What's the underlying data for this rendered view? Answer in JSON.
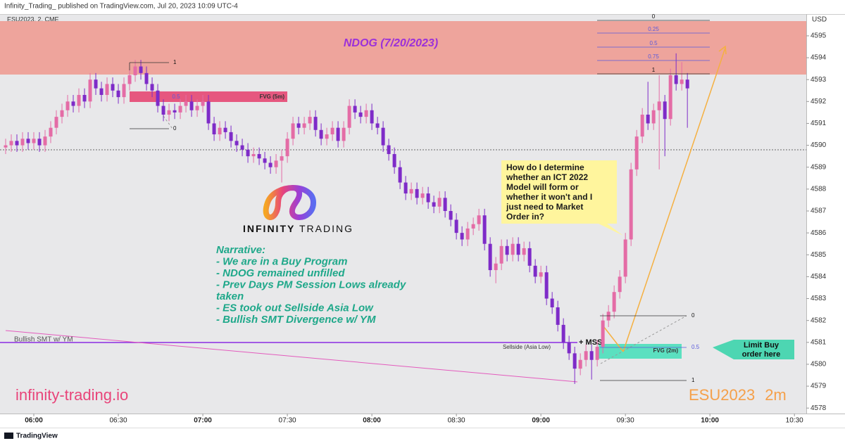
{
  "header": {
    "published": "Infinity_Trading_ published on TradingView.com, Jul 20, 2023 10:09 UTC-4",
    "footer": "TradingView"
  },
  "chart_data": {
    "type": "candlestick",
    "symbol": "ESU2023, 2, CME",
    "currency": "USD",
    "up_color": "#e46ca6",
    "down_color": "#7e2bc8",
    "xlim": [
      -1,
      142.1
    ],
    "xticks": [
      {
        "value": 5,
        "label": "06:00"
      },
      {
        "value": 20,
        "label": "06:30"
      },
      {
        "value": 35,
        "label": "07:00"
      },
      {
        "value": 50,
        "label": "07:30"
      },
      {
        "value": 65,
        "label": "08:00"
      },
      {
        "value": 80,
        "label": "08:30"
      },
      {
        "value": 95,
        "label": "09:00"
      },
      {
        "value": 110,
        "label": "09:30"
      },
      {
        "value": 125,
        "label": "10:00"
      },
      {
        "value": 140,
        "label": "10:30"
      }
    ],
    "ylim": [
      4577.75,
      4596.25
    ],
    "yticks": [
      4578,
      4579,
      4580,
      4581,
      4582,
      4583,
      4584,
      4585,
      4586,
      4587,
      4588,
      4589,
      4590,
      4591,
      4592,
      4593,
      4594,
      4595
    ],
    "open": [
      4589.9,
      4590.0,
      4590.2,
      4590.0,
      4590.3,
      4590.1,
      4590.3,
      4590.0,
      4590.4,
      4590.8,
      4591.3,
      4591.6,
      4592.0,
      4591.8,
      4592.3,
      4592.0,
      4593.0,
      4592.6,
      4592.3,
      4592.8,
      4592.5,
      4592.2,
      4592.8,
      4593.2,
      4593.6,
      4593.3,
      4592.8,
      4592.5,
      4591.8,
      4591.4,
      4591.6,
      4591.5,
      4591.8,
      4592.0,
      4591.6,
      4591.8,
      4592.0,
      4591.0,
      4590.5,
      4590.8,
      4590.6,
      4590.2,
      4590.0,
      4589.8,
      4589.5,
      4589.6,
      4589.4,
      4589.2,
      4589.0,
      4589.3,
      4589.5,
      4590.3,
      4591.0,
      4590.8,
      4591.0,
      4591.3,
      4590.7,
      4590.3,
      4590.5,
      4590.8,
      4590.2,
      4590.8,
      4591.8,
      4591.5,
      4591.3,
      4591.6,
      4591.0,
      4590.8,
      4590.0,
      4589.6,
      4589.0,
      4588.3,
      4587.8,
      4588.0,
      4587.6,
      4587.8,
      4587.4,
      4587.2,
      4587.6,
      4587.0,
      4586.6,
      4586.0,
      4585.7,
      4586.2,
      4586.4,
      4586.8,
      4585.5,
      4584.3,
      4584.6,
      4585.4,
      4585.0,
      4585.5,
      4585.0,
      4585.3,
      4584.5,
      4584.0,
      4584.2,
      4583.0,
      4582.6,
      4581.8,
      4581.0,
      4580.5,
      4579.8,
      4580.2,
      4580.6,
      4580.2,
      4580.8,
      4582.0,
      4582.4,
      4583.3,
      4584.0,
      4585.7,
      4588.9,
      4590.4,
      4591.4,
      4591.0,
      4591.6,
      4592.0,
      4591.2,
      4593.2,
      4592.8,
      4593.0
    ],
    "high": [
      4590.3,
      4590.5,
      4590.5,
      4590.6,
      4590.6,
      4590.6,
      4590.6,
      4590.7,
      4591.1,
      4591.6,
      4591.9,
      4592.3,
      4592.3,
      4592.6,
      4592.6,
      4593.3,
      4593.3,
      4592.9,
      4593.1,
      4593.1,
      4592.8,
      4593.1,
      4593.5,
      4593.9,
      4593.9,
      4593.6,
      4593.1,
      4592.8,
      4592.1,
      4591.9,
      4591.9,
      4592.1,
      4592.3,
      4592.3,
      4592.1,
      4592.3,
      4592.3,
      4591.3,
      4591.1,
      4591.1,
      4590.9,
      4590.5,
      4590.3,
      4590.1,
      4589.9,
      4589.9,
      4589.7,
      4589.5,
      4589.6,
      4589.8,
      4590.6,
      4591.3,
      4591.3,
      4591.3,
      4591.6,
      4591.6,
      4591.0,
      4590.8,
      4591.1,
      4591.1,
      4591.1,
      4592.1,
      4592.1,
      4591.8,
      4591.9,
      4591.9,
      4591.3,
      4591.1,
      4590.3,
      4589.9,
      4589.3,
      4588.6,
      4588.3,
      4588.3,
      4588.1,
      4588.1,
      4587.7,
      4587.9,
      4587.9,
      4587.3,
      4586.9,
      4586.3,
      4586.5,
      4586.7,
      4587.1,
      4587.1,
      4585.8,
      4584.9,
      4585.7,
      4585.7,
      4585.8,
      4585.8,
      4585.6,
      4585.6,
      4584.8,
      4584.5,
      4584.5,
      4583.3,
      4582.9,
      4582.1,
      4581.3,
      4580.8,
      4580.5,
      4580.9,
      4580.9,
      4581.1,
      4582.3,
      4582.7,
      4583.6,
      4584.3,
      4586.0,
      4589.2,
      4590.7,
      4591.7,
      4592.9,
      4591.9,
      4593.2,
      4592.3,
      4593.5,
      4594.2,
      4593.8,
      4593.3
    ],
    "low": [
      4589.6,
      4589.7,
      4589.7,
      4589.7,
      4589.8,
      4589.8,
      4589.7,
      4589.7,
      4590.1,
      4590.5,
      4591.0,
      4591.3,
      4591.5,
      4591.5,
      4591.7,
      4591.7,
      4592.3,
      4592.0,
      4592.0,
      4592.2,
      4591.9,
      4591.9,
      4592.5,
      4592.9,
      4593.0,
      4592.5,
      4592.2,
      4591.5,
      4591.1,
      4591.1,
      4591.2,
      4591.2,
      4591.5,
      4591.3,
      4591.3,
      4591.5,
      4590.7,
      4590.2,
      4590.2,
      4590.3,
      4589.9,
      4589.7,
      4589.5,
      4589.2,
      4589.2,
      4589.1,
      4588.9,
      4588.7,
      4588.7,
      4588.3,
      4589.2,
      4590.0,
      4590.5,
      4590.5,
      4590.7,
      4590.4,
      4590.0,
      4590.0,
      4590.2,
      4589.9,
      4589.9,
      4590.5,
      4591.2,
      4591.0,
      4591.0,
      4590.7,
      4590.5,
      4589.7,
      4589.3,
      4588.7,
      4588.0,
      4587.5,
      4587.5,
      4587.3,
      4587.3,
      4587.1,
      4586.9,
      4586.9,
      4586.7,
      4586.3,
      4585.7,
      4585.4,
      4585.4,
      4585.9,
      4586.1,
      4585.2,
      4584.0,
      4583.7,
      4584.3,
      4584.7,
      4584.7,
      4584.7,
      4584.7,
      4584.2,
      4583.7,
      4583.7,
      4582.7,
      4582.3,
      4581.5,
      4580.7,
      4580.2,
      4579.1,
      4579.5,
      4579.9,
      4579.3,
      4579.9,
      4580.5,
      4581.7,
      4582.1,
      4583.0,
      4583.7,
      4585.4,
      4588.6,
      4590.1,
      4590.7,
      4590.7,
      4588.9,
      4589.5,
      4590.9,
      4592.5,
      4592.5,
      4590.8
    ],
    "close": [
      4590.0,
      4590.2,
      4590.0,
      4590.3,
      4590.1,
      4590.3,
      4590.0,
      4590.4,
      4590.8,
      4591.3,
      4591.6,
      4592.0,
      4591.8,
      4592.3,
      4592.0,
      4593.0,
      4592.6,
      4592.3,
      4592.8,
      4592.5,
      4592.2,
      4592.8,
      4593.2,
      4593.6,
      4593.3,
      4592.8,
      4592.5,
      4591.8,
      4591.4,
      4591.6,
      4591.5,
      4591.8,
      4592.0,
      4591.6,
      4591.8,
      4592.0,
      4591.0,
      4590.5,
      4590.8,
      4590.6,
      4590.2,
      4590.0,
      4589.8,
      4589.5,
      4589.6,
      4589.4,
      4589.2,
      4589.0,
      4589.3,
      4589.5,
      4590.3,
      4591.0,
      4590.8,
      4591.0,
      4591.3,
      4590.7,
      4590.3,
      4590.5,
      4590.8,
      4590.2,
      4590.8,
      4591.8,
      4591.5,
      4591.3,
      4591.6,
      4591.0,
      4590.8,
      4590.0,
      4589.6,
      4589.0,
      4588.3,
      4587.8,
      4588.0,
      4587.6,
      4587.8,
      4587.4,
      4587.2,
      4587.6,
      4587.0,
      4586.6,
      4586.0,
      4585.7,
      4586.2,
      4586.4,
      4586.8,
      4585.5,
      4584.3,
      4584.6,
      4585.4,
      4585.0,
      4585.5,
      4585.0,
      4585.3,
      4584.5,
      4584.0,
      4584.2,
      4583.0,
      4582.6,
      4581.8,
      4581.0,
      4580.5,
      4579.8,
      4580.2,
      4580.6,
      4580.2,
      4580.8,
      4582.0,
      4582.4,
      4583.3,
      4584.0,
      4585.7,
      4588.9,
      4590.4,
      4591.4,
      4591.0,
      4591.6,
      4592.0,
      4591.2,
      4593.2,
      4592.8,
      4593.0,
      4592.6
    ]
  },
  "annotations": {
    "ndog": "NDOG (7/20/2023)",
    "ndog_fib": [
      0,
      0.25,
      0.5,
      0.75,
      1
    ],
    "fvg_5m": "FVG (5m)",
    "fvg_5m_mid": 0.5,
    "left_fib": [
      1,
      0
    ],
    "fvg_2m": "FVG (2m)",
    "fvg_2m_fib": [
      0,
      0.5,
      1
    ],
    "mss": "+ MSS",
    "sellside": "Sellside (Asia Low)",
    "smt": "Bullish SMT w/ YM",
    "brand": [
      "INFINITY",
      "TRADING"
    ],
    "narrative": [
      "Narrative:",
      "- We are in a Buy Program",
      "- NDOG remained unfilled",
      "- Prev Days PM Session Lows already",
      "taken",
      "- ES took out Sellside Asia Low",
      "- Bullish SMT Divergence w/ YM"
    ],
    "question": [
      "How do I determine",
      "whether an ICT 2022",
      "Model will form or",
      "whether it won't and I",
      "just need to Market",
      "Order in?"
    ],
    "limit": [
      "Limit Buy",
      "order here"
    ],
    "website": "infinity-trading.io",
    "watermark": [
      "ESU2023",
      "2m"
    ]
  }
}
